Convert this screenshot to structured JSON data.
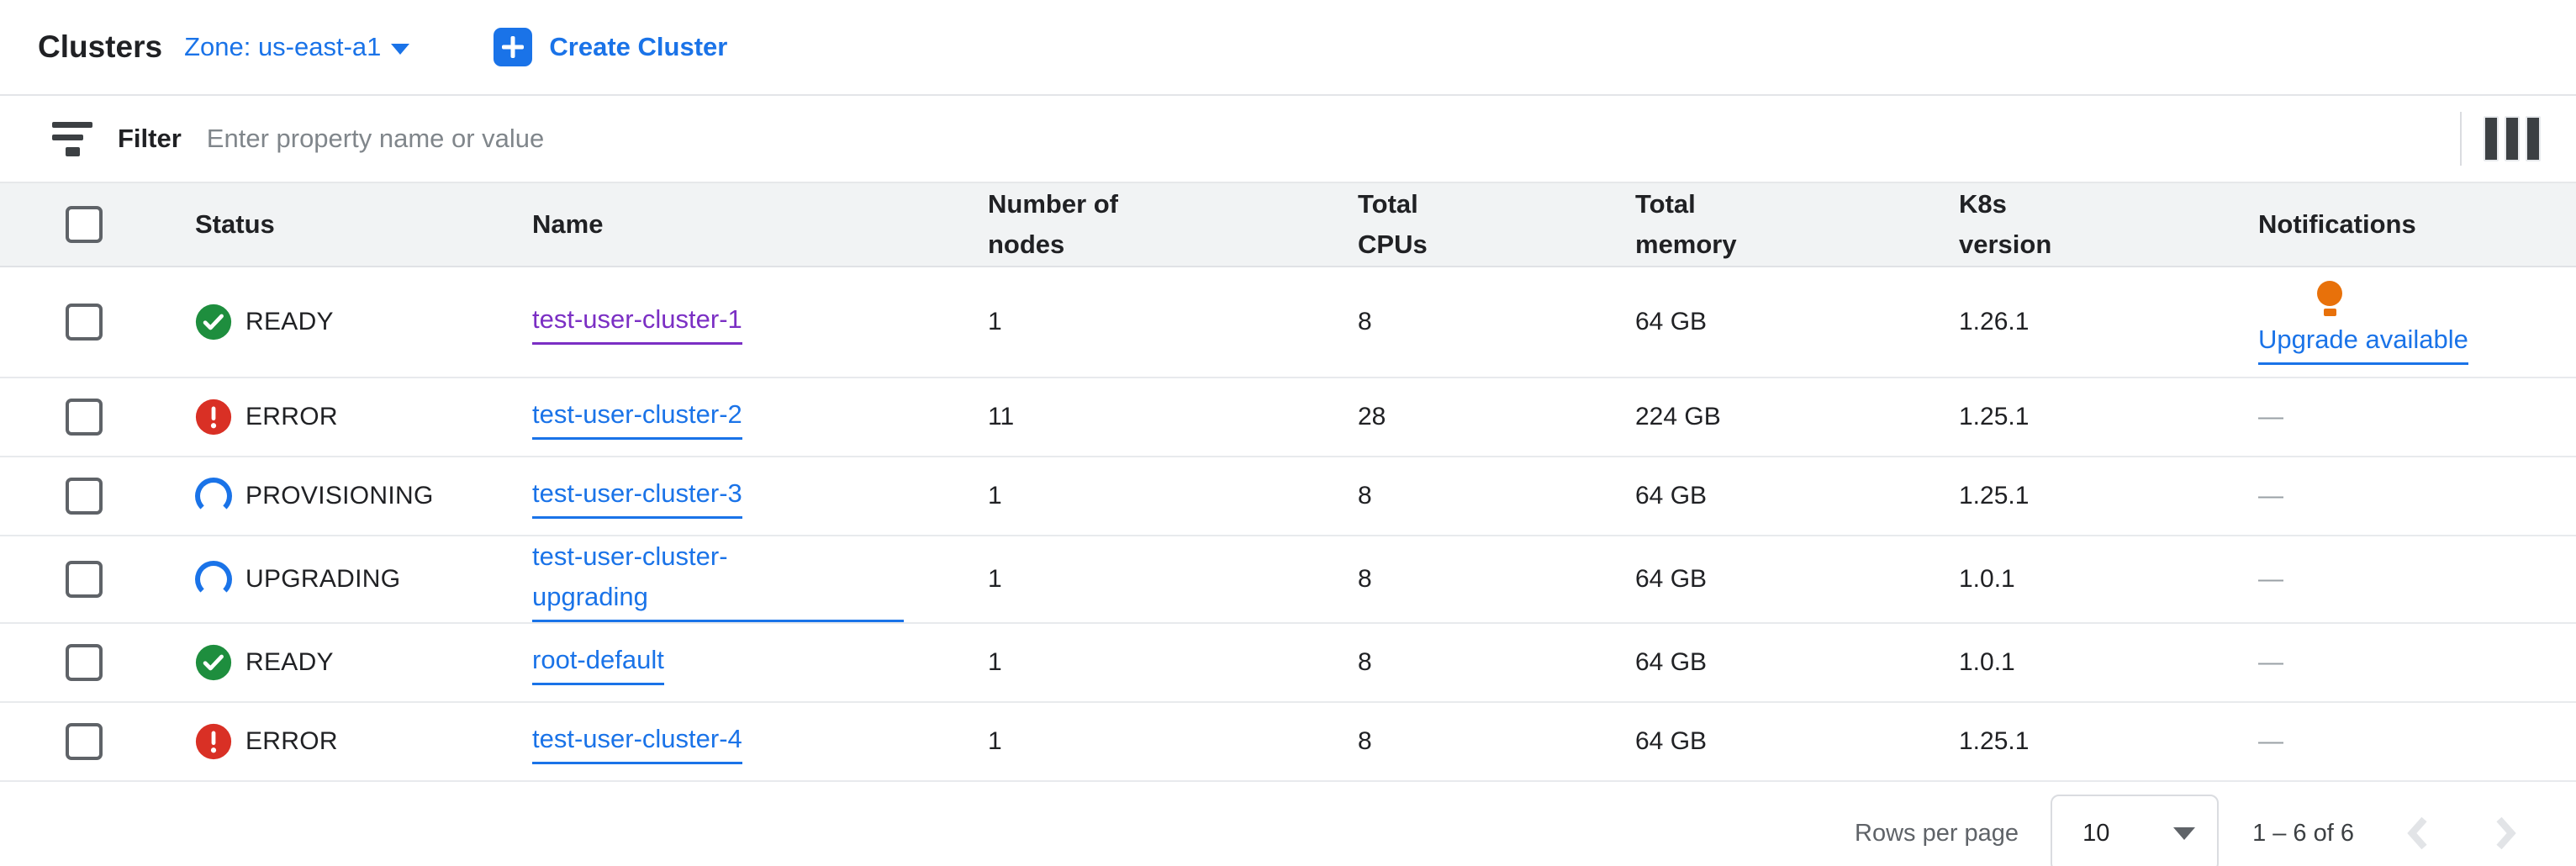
{
  "header": {
    "title": "Clusters",
    "zone_label": "Zone: us-east-a1",
    "create_button_label": "Create Cluster"
  },
  "filter": {
    "label": "Filter",
    "placeholder": "Enter property name or value"
  },
  "table": {
    "columns": [
      {
        "id": "status",
        "lines": [
          "Status"
        ]
      },
      {
        "id": "name",
        "lines": [
          "Name"
        ]
      },
      {
        "id": "nodes",
        "lines": [
          "Number of",
          "nodes"
        ]
      },
      {
        "id": "cpus",
        "lines": [
          "Total",
          "CPUs"
        ]
      },
      {
        "id": "memory",
        "lines": [
          "Total",
          "memory"
        ]
      },
      {
        "id": "k8s",
        "lines": [
          "K8s",
          "version"
        ]
      },
      {
        "id": "notifications",
        "lines": [
          "Notifications"
        ]
      }
    ],
    "rows": [
      {
        "status": "READY",
        "status_kind": "ready",
        "name": "test-user-cluster-1",
        "visited": true,
        "wrap": false,
        "nodes": "1",
        "cpus": "8",
        "memory": "64 GB",
        "k8s_version": "1.26.1",
        "notification": {
          "type": "upgrade-available",
          "label": "Upgrade available"
        }
      },
      {
        "status": "ERROR",
        "status_kind": "error",
        "name": "test-user-cluster-2",
        "visited": false,
        "wrap": false,
        "nodes": "11",
        "cpus": "28",
        "memory": "224 GB",
        "k8s_version": "1.25.1",
        "notification": {
          "type": "none",
          "label": "—"
        }
      },
      {
        "status": "PROVISIONING",
        "status_kind": "provisioning",
        "name": "test-user-cluster-3",
        "visited": false,
        "wrap": false,
        "nodes": "1",
        "cpus": "8",
        "memory": "64 GB",
        "k8s_version": "1.25.1",
        "notification": {
          "type": "none",
          "label": "—"
        }
      },
      {
        "status": "UPGRADING",
        "status_kind": "upgrading",
        "name": "test-user-cluster-upgrading",
        "visited": false,
        "wrap": true,
        "nodes": "1",
        "cpus": "8",
        "memory": "64 GB",
        "k8s_version": "1.0.1",
        "notification": {
          "type": "none",
          "label": "—"
        }
      },
      {
        "status": "READY",
        "status_kind": "ready",
        "name": "root-default",
        "visited": false,
        "wrap": false,
        "nodes": "1",
        "cpus": "8",
        "memory": "64 GB",
        "k8s_version": "1.0.1",
        "notification": {
          "type": "none",
          "label": "—"
        }
      },
      {
        "status": "ERROR",
        "status_kind": "error",
        "name": "test-user-cluster-4",
        "visited": false,
        "wrap": false,
        "nodes": "1",
        "cpus": "8",
        "memory": "64 GB",
        "k8s_version": "1.25.1",
        "notification": {
          "type": "none",
          "label": "—"
        }
      }
    ]
  },
  "footer": {
    "rows_per_page_label": "Rows per page",
    "rows_per_page_value": "10",
    "range_label": "1 – 6 of 6"
  },
  "icons": {
    "filter": "filter-list",
    "columns": "view-columns",
    "zone_caret": "chevron-down",
    "create": "plus",
    "ready": "check-circle",
    "error": "error-circle",
    "provisioning": "spinner-arc",
    "upgrading": "spinner-arc",
    "upgrade_notification": "lightbulb",
    "select_caret": "arrow-drop-down",
    "prev_page": "chevron-left",
    "next_page": "chevron-right"
  },
  "colors": {
    "accent_blue": "#1a73e8",
    "visited_purple": "#7b2fc4",
    "status_green": "#1e8e3e",
    "status_red": "#d93025",
    "bulb_orange": "#e8710a",
    "text_dark": "#202124",
    "text_gray": "#5f6368",
    "placeholder_gray": "#80868b",
    "dash_gray": "#9aa0a6",
    "header_band": "#f1f3f4",
    "border_gray": "#e8eaed",
    "disabled_chevron": "#e2e4e7"
  }
}
